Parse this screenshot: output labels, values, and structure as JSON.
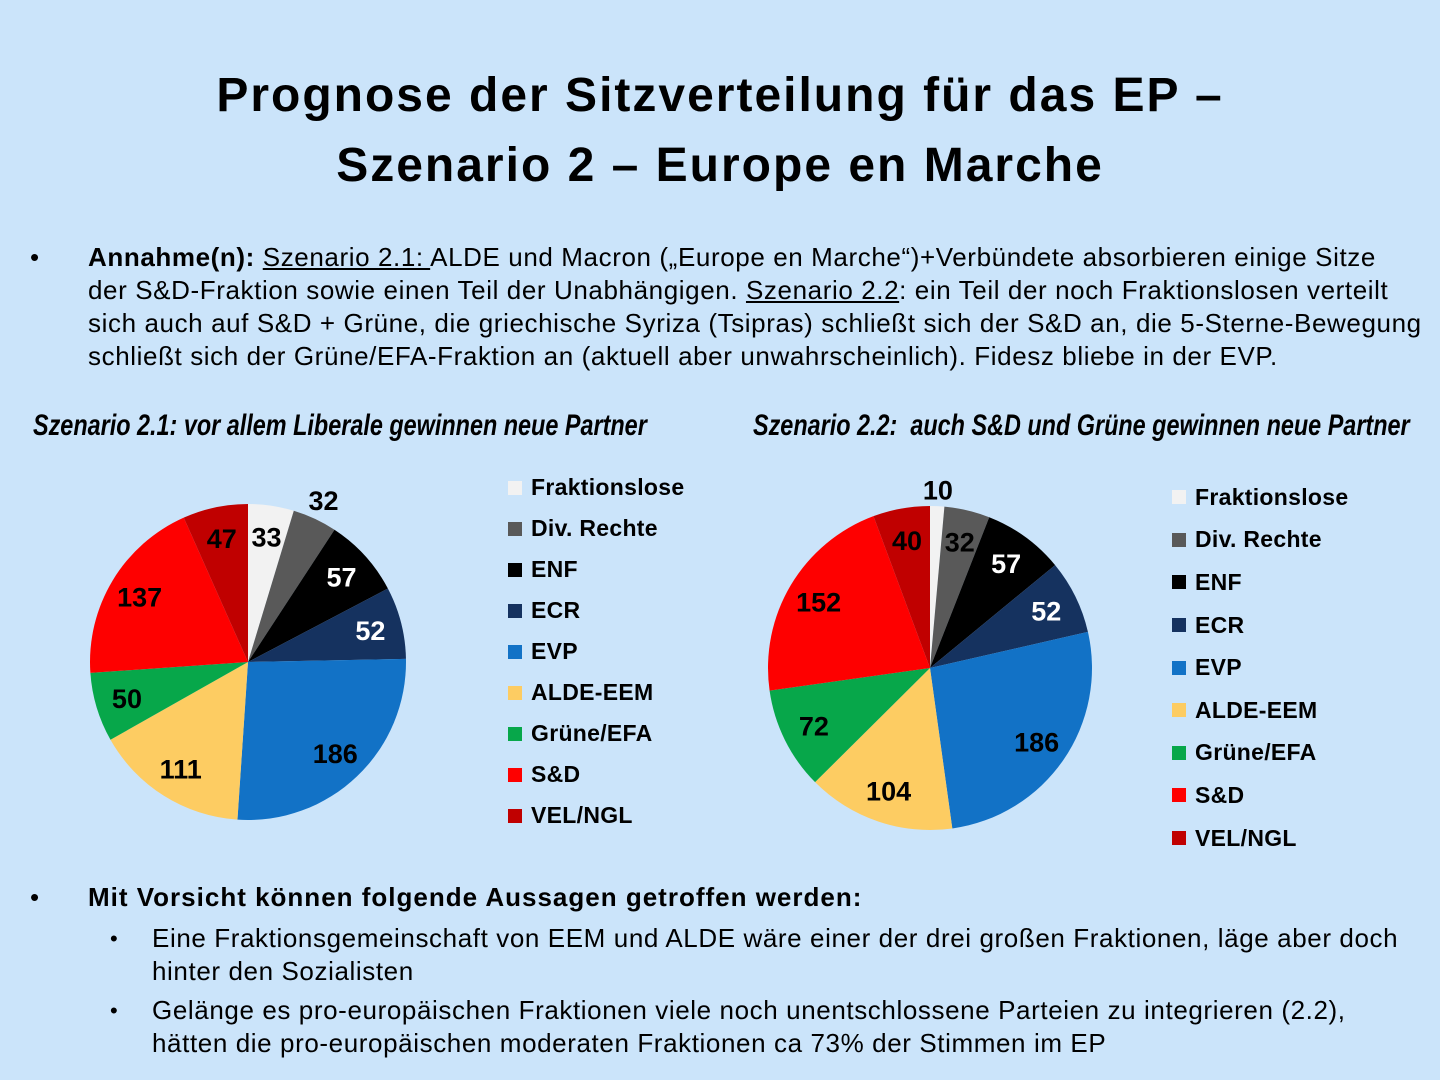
{
  "slide_title": {
    "lines": [
      "Prognose der Sitzverteilung für das EP –",
      "Szenario 2 – Europe en Marche"
    ]
  },
  "bullet_char": "•",
  "assumption": {
    "lines": [
      [
        {
          "t": "Annahme(n): ",
          "b": true
        },
        {
          "t": "Szenario 2.1: ",
          "u": true
        },
        {
          "t": "ALDE und Macron („Europe en Marche“)+Verbündete absorbieren einige Sitze"
        }
      ],
      [
        {
          "t": "der S&D-Fraktion sowie einen Teil der Unabhängigen. "
        },
        {
          "t": "Szenario 2.2",
          "u": true
        },
        {
          "t": ": ein Teil der noch Fraktionslosen verteilt"
        }
      ],
      [
        {
          "t": "sich auch auf S&D + Grüne, die griechische Syriza (Tsipras) schließt sich der S&D an, die 5-Sterne-Bewegung"
        }
      ],
      [
        {
          "t": "schließt sich der Grüne/EFA-Fraktion an (aktuell aber unwahrscheinlich). Fidesz bliebe in der EVP."
        }
      ]
    ]
  },
  "parties": [
    {
      "label": "Fraktionslose",
      "color": "#F2F2F2",
      "value_label_color": "#000000"
    },
    {
      "label": "Div. Rechte",
      "color": "#595959",
      "value_label_color": "#000000"
    },
    {
      "label": "ENF",
      "color": "#000000",
      "value_label_color": "#FFFFFF"
    },
    {
      "label": "ECR",
      "color": "#15325F",
      "value_label_color": "#FFFFFF"
    },
    {
      "label": "EVP",
      "color": "#1272C6",
      "value_label_color": "#000000"
    },
    {
      "label": "ALDE-EEM",
      "color": "#FDCC62",
      "value_label_color": "#000000"
    },
    {
      "label": "Grüne/EFA",
      "color": "#07A74A",
      "value_label_color": "#000000"
    },
    {
      "label": "S&D",
      "color": "#FE0000",
      "value_label_color": "#000000"
    },
    {
      "label": "VEL/NGL",
      "color": "#C00000",
      "value_label_color": "#000000"
    }
  ],
  "chart_data": [
    {
      "type": "pie",
      "title": "Szenario 2.1: vor allem Liberale gewinnen neue Partner",
      "categories": [
        "Fraktionslose",
        "Div. Rechte",
        "ENF",
        "ECR",
        "EVP",
        "ALDE-EEM",
        "Grüne/EFA",
        "S&D",
        "VEL/NGL"
      ],
      "values": [
        33,
        32,
        57,
        52,
        186,
        111,
        50,
        137,
        47
      ],
      "total": 705,
      "start_angle": "12-oclock",
      "direction": "clockwise",
      "outside_label_indices": [
        1
      ],
      "legend_position": "right"
    },
    {
      "type": "pie",
      "title": "Szenario 2.2:  auch S&D und Grüne gewinnen neue Partner",
      "categories": [
        "Fraktionslose",
        "Div. Rechte",
        "ENF",
        "ECR",
        "EVP",
        "ALDE-EEM",
        "Grüne/EFA",
        "S&D",
        "VEL/NGL"
      ],
      "values": [
        10,
        32,
        57,
        52,
        186,
        104,
        72,
        152,
        40
      ],
      "total": 705,
      "start_angle": "12-oclock",
      "direction": "clockwise",
      "outside_label_indices": [
        0
      ],
      "legend_position": "right"
    }
  ],
  "statements": {
    "heading": "Mit Vorsicht können folgende Aussagen getroffen werden:",
    "items": [
      {
        "lines": [
          "Eine Fraktionsgemeinschaft von EEM und ALDE wäre einer der drei großen Fraktionen, läge aber doch",
          "hinter den Sozialisten"
        ]
      },
      {
        "lines": [
          "Gelänge es pro-europäischen Fraktionen viele noch unentschlossene Parteien zu integrieren (2.2),",
          "hätten die pro-europäischen moderaten Fraktionen ca 73% der Stimmen im EP"
        ]
      }
    ]
  },
  "colors": {
    "background": "#CBE4FA",
    "text": "#000000"
  }
}
